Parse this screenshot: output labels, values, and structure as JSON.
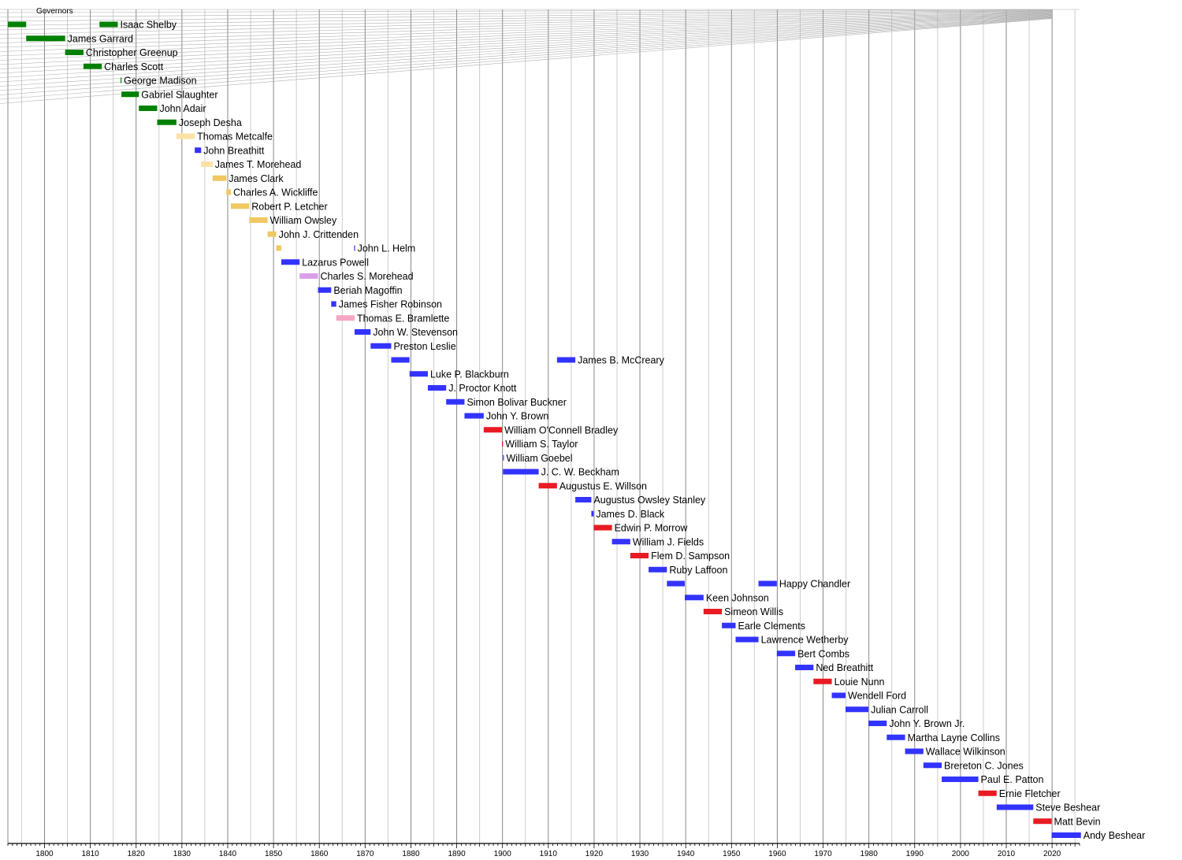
{
  "chart_data": {
    "type": "timeline",
    "title": "Governors",
    "xlim": [
      1792,
      2026
    ],
    "x_ticks": [
      1800,
      1810,
      1820,
      1830,
      1840,
      1850,
      1860,
      1870,
      1880,
      1890,
      1900,
      1910,
      1920,
      1930,
      1940,
      1950,
      1960,
      1970,
      1980,
      1990,
      2000,
      2010,
      2020
    ],
    "party_colors": {
      "Democratic-Republican": "#008000",
      "National Republican": "#FCE1A6",
      "Whig": "#F0C862",
      "Democratic": "#3333FF",
      "Republican": "#E81B23",
      "Know Nothing": "#D9A0E8",
      "National Union": "#F4A7C4"
    },
    "bar_color_values": {
      "ltgreen_ref": "#5bd35b"
    },
    "governors": [
      {
        "name": "Isaac Shelby",
        "terms": [
          {
            "start": 1792,
            "end": 1796,
            "party": "Democratic-Republican"
          },
          {
            "start": 1812,
            "end": 1816,
            "party": "Democratic-Republican"
          }
        ]
      },
      {
        "name": "James Garrard",
        "terms": [
          {
            "start": 1796,
            "end": 1804.5,
            "party": "Democratic-Republican"
          }
        ]
      },
      {
        "name": "Christopher Greenup",
        "terms": [
          {
            "start": 1804.5,
            "end": 1808.5,
            "party": "Democratic-Republican"
          }
        ]
      },
      {
        "name": "Charles Scott",
        "terms": [
          {
            "start": 1808.5,
            "end": 1812.5,
            "party": "Democratic-Republican"
          }
        ]
      },
      {
        "name": "George Madison",
        "terms": [
          {
            "start": 1816.6,
            "end": 1816.8,
            "party": "Democratic-Republican"
          }
        ]
      },
      {
        "name": "Gabriel Slaughter",
        "terms": [
          {
            "start": 1816.8,
            "end": 1820.6,
            "party": "Democratic-Republican"
          }
        ]
      },
      {
        "name": "John Adair",
        "terms": [
          {
            "start": 1820.6,
            "end": 1824.6,
            "party": "Democratic-Republican"
          }
        ]
      },
      {
        "name": "Joseph Desha",
        "terms": [
          {
            "start": 1824.6,
            "end": 1828.8,
            "party": "Democratic-Republican"
          }
        ]
      },
      {
        "name": "Thomas Metcalfe",
        "terms": [
          {
            "start": 1828.8,
            "end": 1832.8,
            "party": "National Republican"
          }
        ]
      },
      {
        "name": "John Breathitt",
        "terms": [
          {
            "start": 1832.8,
            "end": 1834.2,
            "party": "Democratic"
          }
        ]
      },
      {
        "name": "James T. Morehead",
        "terms": [
          {
            "start": 1834.2,
            "end": 1836.7,
            "party": "National Republican"
          }
        ]
      },
      {
        "name": "James Clark",
        "terms": [
          {
            "start": 1836.7,
            "end": 1839.7,
            "party": "Whig"
          }
        ]
      },
      {
        "name": "Charles A. Wickliffe",
        "terms": [
          {
            "start": 1839.7,
            "end": 1840.7,
            "party": "Whig"
          }
        ]
      },
      {
        "name": "Robert P. Letcher",
        "terms": [
          {
            "start": 1840.7,
            "end": 1844.7,
            "party": "Whig"
          }
        ]
      },
      {
        "name": "William Owsley",
        "terms": [
          {
            "start": 1844.7,
            "end": 1848.7,
            "party": "Whig"
          }
        ]
      },
      {
        "name": "John J. Crittenden",
        "terms": [
          {
            "start": 1848.7,
            "end": 1850.6,
            "party": "Whig"
          }
        ]
      },
      {
        "name": "John L. Helm",
        "terms": [
          {
            "start": 1850.6,
            "end": 1851.7,
            "party": "Whig"
          },
          {
            "start": 1867.6,
            "end": 1867.8,
            "party": "Democratic"
          }
        ]
      },
      {
        "name": "Lazarus Powell",
        "terms": [
          {
            "start": 1851.7,
            "end": 1855.7,
            "party": "Democratic"
          }
        ]
      },
      {
        "name": "Charles S. Morehead",
        "terms": [
          {
            "start": 1855.7,
            "end": 1859.7,
            "party": "Know Nothing"
          }
        ]
      },
      {
        "name": "Beriah Magoffin",
        "terms": [
          {
            "start": 1859.7,
            "end": 1862.6,
            "party": "Democratic"
          }
        ]
      },
      {
        "name": "James Fisher Robinson",
        "terms": [
          {
            "start": 1862.6,
            "end": 1863.7,
            "party": "Democratic"
          }
        ]
      },
      {
        "name": "Thomas E. Bramlette",
        "terms": [
          {
            "start": 1863.7,
            "end": 1867.7,
            "party": "National Union"
          }
        ]
      },
      {
        "name": "John W. Stevenson",
        "terms": [
          {
            "start": 1867.7,
            "end": 1871.2,
            "party": "Democratic"
          }
        ]
      },
      {
        "name": "Preston Leslie",
        "terms": [
          {
            "start": 1871.2,
            "end": 1875.7,
            "party": "Democratic"
          }
        ]
      },
      {
        "name": "James B. McCreary",
        "terms": [
          {
            "start": 1875.7,
            "end": 1879.7,
            "party": "Democratic"
          },
          {
            "start": 1911.9,
            "end": 1915.9,
            "party": "Democratic"
          }
        ]
      },
      {
        "name": "Luke P. Blackburn",
        "terms": [
          {
            "start": 1879.7,
            "end": 1883.7,
            "party": "Democratic"
          }
        ]
      },
      {
        "name": "J. Proctor Knott",
        "terms": [
          {
            "start": 1883.7,
            "end": 1887.7,
            "party": "Democratic"
          }
        ]
      },
      {
        "name": "Simon Bolivar Buckner",
        "terms": [
          {
            "start": 1887.7,
            "end": 1891.7,
            "party": "Democratic"
          }
        ]
      },
      {
        "name": "John Y. Brown",
        "terms": [
          {
            "start": 1891.7,
            "end": 1895.9,
            "party": "Democratic"
          }
        ]
      },
      {
        "name": "William O'Connell Bradley",
        "terms": [
          {
            "start": 1895.9,
            "end": 1899.9,
            "party": "Republican"
          }
        ]
      },
      {
        "name": "William S. Taylor",
        "terms": [
          {
            "start": 1899.9,
            "end": 1900.1,
            "party": "Republican"
          }
        ]
      },
      {
        "name": "William Goebel",
        "terms": [
          {
            "start": 1900.1,
            "end": 1900.2,
            "party": "Democratic"
          }
        ]
      },
      {
        "name": "J. C. W. Beckham",
        "terms": [
          {
            "start": 1900.1,
            "end": 1907.9,
            "party": "Democratic"
          }
        ]
      },
      {
        "name": "Augustus E. Willson",
        "terms": [
          {
            "start": 1907.9,
            "end": 1911.9,
            "party": "Republican"
          }
        ]
      },
      {
        "name": "Augustus Owsley Stanley",
        "terms": [
          {
            "start": 1915.9,
            "end": 1919.4,
            "party": "Democratic"
          }
        ]
      },
      {
        "name": "James D. Black",
        "terms": [
          {
            "start": 1919.4,
            "end": 1919.9,
            "party": "Democratic"
          }
        ]
      },
      {
        "name": "Edwin P. Morrow",
        "terms": [
          {
            "start": 1919.9,
            "end": 1923.9,
            "party": "Republican"
          }
        ]
      },
      {
        "name": "William J. Fields",
        "terms": [
          {
            "start": 1923.9,
            "end": 1927.9,
            "party": "Democratic"
          }
        ]
      },
      {
        "name": "Flem D. Sampson",
        "terms": [
          {
            "start": 1927.9,
            "end": 1931.9,
            "party": "Republican"
          }
        ]
      },
      {
        "name": "Ruby Laffoon",
        "terms": [
          {
            "start": 1931.9,
            "end": 1935.9,
            "party": "Democratic"
          }
        ]
      },
      {
        "name": "Happy Chandler",
        "terms": [
          {
            "start": 1935.9,
            "end": 1939.8,
            "party": "Democratic"
          },
          {
            "start": 1955.9,
            "end": 1959.9,
            "party": "Democratic"
          }
        ]
      },
      {
        "name": "Keen Johnson",
        "terms": [
          {
            "start": 1939.8,
            "end": 1943.9,
            "party": "Democratic"
          }
        ]
      },
      {
        "name": "Simeon Willis",
        "terms": [
          {
            "start": 1943.9,
            "end": 1947.9,
            "party": "Republican"
          }
        ]
      },
      {
        "name": "Earle Clements",
        "terms": [
          {
            "start": 1947.9,
            "end": 1950.9,
            "party": "Democratic"
          }
        ]
      },
      {
        "name": "Lawrence Wetherby",
        "terms": [
          {
            "start": 1950.9,
            "end": 1955.9,
            "party": "Democratic"
          }
        ]
      },
      {
        "name": "Bert Combs",
        "terms": [
          {
            "start": 1959.9,
            "end": 1963.9,
            "party": "Democratic"
          }
        ]
      },
      {
        "name": "Ned Breathitt",
        "terms": [
          {
            "start": 1963.9,
            "end": 1967.9,
            "party": "Democratic"
          }
        ]
      },
      {
        "name": "Louie Nunn",
        "terms": [
          {
            "start": 1967.9,
            "end": 1971.9,
            "party": "Republican"
          }
        ]
      },
      {
        "name": "Wendell Ford",
        "terms": [
          {
            "start": 1971.9,
            "end": 1974.9,
            "party": "Democratic"
          }
        ]
      },
      {
        "name": "Julian Carroll",
        "terms": [
          {
            "start": 1974.9,
            "end": 1979.9,
            "party": "Democratic"
          }
        ]
      },
      {
        "name": "John Y. Brown Jr.",
        "terms": [
          {
            "start": 1979.9,
            "end": 1983.9,
            "party": "Democratic"
          }
        ]
      },
      {
        "name": "Martha Layne Collins",
        "terms": [
          {
            "start": 1983.9,
            "end": 1987.9,
            "party": "Democratic"
          }
        ]
      },
      {
        "name": "Wallace Wilkinson",
        "terms": [
          {
            "start": 1987.9,
            "end": 1991.9,
            "party": "Democratic"
          }
        ]
      },
      {
        "name": "Brereton C. Jones",
        "terms": [
          {
            "start": 1991.9,
            "end": 1995.9,
            "party": "Democratic"
          }
        ]
      },
      {
        "name": "Paul E. Patton",
        "terms": [
          {
            "start": 1995.9,
            "end": 2003.9,
            "party": "Democratic"
          }
        ]
      },
      {
        "name": "Ernie Fletcher",
        "terms": [
          {
            "start": 2003.9,
            "end": 2007.9,
            "party": "Republican"
          }
        ]
      },
      {
        "name": "Steve Beshear",
        "terms": [
          {
            "start": 2007.9,
            "end": 2015.9,
            "party": "Democratic"
          }
        ]
      },
      {
        "name": "Matt Bevin",
        "terms": [
          {
            "start": 2015.9,
            "end": 2019.9,
            "party": "Republican"
          }
        ]
      },
      {
        "name": "Andy Beshear",
        "terms": [
          {
            "start": 2019.9,
            "end": 2026.3,
            "party": "Democratic"
          }
        ]
      }
    ]
  }
}
